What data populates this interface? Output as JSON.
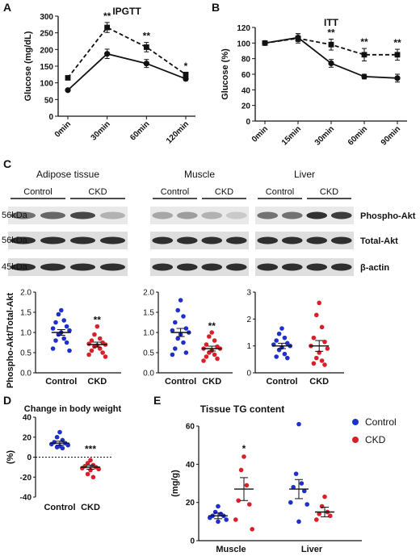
{
  "chart_data": [
    {
      "panel": "A",
      "type": "line",
      "title": "IPGTT",
      "ylabel": "Glucose (mg/dL)",
      "categories": [
        "0min",
        "30min",
        "60min",
        "120min"
      ],
      "ylim": [
        0,
        300
      ],
      "yticks": [
        0,
        50,
        100,
        150,
        200,
        250,
        300
      ],
      "series": [
        {
          "values": [
            78,
            187,
            158,
            112
          ],
          "errors": [
            3,
            14,
            12,
            5
          ],
          "style": "solid",
          "marker": "circle"
        },
        {
          "values": [
            115,
            266,
            207,
            125
          ],
          "errors": [
            6,
            15,
            14,
            6
          ],
          "style": "dashed",
          "marker": "square"
        }
      ],
      "annotations": [
        "",
        "**",
        "**",
        "*"
      ]
    },
    {
      "panel": "B",
      "type": "line",
      "title": "ITT",
      "ylabel": "Glucose (%)",
      "categories": [
        "0min",
        "15min",
        "30min",
        "60min",
        "90min"
      ],
      "ylim": [
        0,
        120
      ],
      "yticks": [
        0,
        20,
        40,
        60,
        80,
        100,
        120
      ],
      "series": [
        {
          "values": [
            100,
            107,
            74,
            57,
            55
          ],
          "errors": [
            1,
            5,
            5,
            3,
            5
          ],
          "style": "solid",
          "marker": "circle"
        },
        {
          "values": [
            100,
            106,
            98,
            85,
            85
          ],
          "errors": [
            1,
            6,
            7,
            8,
            7
          ],
          "style": "dashed",
          "marker": "square"
        }
      ],
      "annotations": [
        "",
        "",
        "**",
        "**",
        "**"
      ]
    },
    {
      "panel": "C",
      "type": "scatter",
      "ylabel": "Phospho-Akt/Total-Akt",
      "groups": [
        {
          "tissue": "Adipose tissue",
          "ylim": [
            0,
            2.0
          ],
          "yticks": [
            "0.0",
            "0.5",
            "1.0",
            "1.5",
            "2.0"
          ],
          "annotation": "**",
          "control": [
            1.55,
            1.45,
            1.3,
            1.25,
            1.15,
            1.1,
            1.05,
            1.0,
            0.95,
            0.85,
            0.8,
            0.75,
            0.6,
            0.55
          ],
          "ckd": [
            1.15,
            0.95,
            0.85,
            0.8,
            0.75,
            0.72,
            0.7,
            0.68,
            0.65,
            0.6,
            0.55,
            0.5,
            0.45,
            0.4
          ],
          "control_mean": 1.0,
          "control_sem": 0.07,
          "ckd_mean": 0.7,
          "ckd_sem": 0.06
        },
        {
          "tissue": "Muscle",
          "ylim": [
            0,
            2.0
          ],
          "yticks": [
            "0.0",
            "0.5",
            "1.0",
            "1.5",
            "2.0"
          ],
          "annotation": "**",
          "control": [
            1.8,
            1.55,
            1.4,
            1.25,
            1.1,
            1.05,
            1.0,
            0.95,
            0.85,
            0.75,
            0.6,
            0.5,
            0.45
          ],
          "ckd": [
            1.0,
            0.9,
            0.8,
            0.7,
            0.65,
            0.6,
            0.6,
            0.55,
            0.5,
            0.45,
            0.4,
            0.35,
            0.3
          ],
          "control_mean": 1.0,
          "control_sem": 0.1,
          "ckd_mean": 0.6,
          "ckd_sem": 0.06
        },
        {
          "tissue": "Liver",
          "ylim": [
            0,
            3
          ],
          "yticks": [
            "0",
            "1",
            "2",
            "3"
          ],
          "annotation": "",
          "control": [
            1.65,
            1.45,
            1.3,
            1.2,
            1.1,
            1.05,
            1.0,
            0.95,
            0.85,
            0.7,
            0.6,
            0.55
          ],
          "ckd": [
            2.6,
            2.15,
            1.7,
            1.3,
            1.15,
            1.0,
            0.9,
            0.75,
            0.55,
            0.45,
            0.35,
            0.3
          ],
          "control_mean": 1.0,
          "control_sem": 0.1,
          "ckd_mean": 1.0,
          "ckd_sem": 0.2
        }
      ],
      "categories": [
        "Control",
        "CKD"
      ]
    },
    {
      "panel": "D",
      "type": "scatter",
      "title": "Change in body weight",
      "ylabel": "(%)",
      "categories": [
        "Control",
        "CKD"
      ],
      "ylim": [
        -40,
        40
      ],
      "yticks": [
        -40,
        -20,
        0,
        20,
        40
      ],
      "control": [
        25,
        20,
        17,
        15,
        14,
        13,
        12,
        11,
        10,
        9
      ],
      "ckd": [
        -3,
        -6,
        -8,
        -9,
        -10,
        -11,
        -12,
        -13,
        -17,
        -20
      ],
      "control_mean": 14,
      "control_sem": 2,
      "ckd_mean": -10,
      "ckd_sem": 2,
      "annotation": "***"
    },
    {
      "panel": "E",
      "type": "scatter",
      "title": "Tissue TG content",
      "ylabel": "(mg/g)",
      "categories": [
        "Muscle",
        "Liver"
      ],
      "ylim": [
        0,
        60
      ],
      "yticks": [
        0,
        20,
        40,
        60
      ],
      "legend": [
        {
          "name": "Control",
          "color": "#1f2fc9"
        },
        {
          "name": "CKD",
          "color": "#d9202a"
        }
      ],
      "groups": [
        {
          "tissue": "Muscle",
          "annotation": "*",
          "control": [
            18,
            15,
            14,
            13,
            13,
            12,
            11,
            10
          ],
          "ckd": [
            44,
            37,
            29,
            21,
            19,
            11,
            6
          ],
          "control_mean": 13,
          "control_sem": 1.5,
          "ckd_mean": 27,
          "ckd_sem": 6
        },
        {
          "tissue": "Liver",
          "annotation": "",
          "control": [
            61,
            35,
            30,
            28,
            26,
            20,
            19,
            10
          ],
          "ckd": [
            23,
            18,
            15,
            14,
            13,
            11
          ],
          "control_mean": 27,
          "control_sem": 5,
          "ckd_mean": 15,
          "ckd_sem": 2.5
        }
      ]
    }
  ],
  "panel_labels": [
    "A",
    "B",
    "C",
    "D",
    "E"
  ],
  "blots": {
    "tissues": [
      "Adipose tissue",
      "Muscle",
      "Liver"
    ],
    "groups": [
      "Control",
      "CKD"
    ],
    "size_labels": [
      "56kDa",
      "56kDa",
      "45kDa"
    ],
    "proteins": [
      "Phospho-Akt",
      "Total-Akt",
      "β-actin"
    ]
  },
  "colors": {
    "control": "#1f2fc9",
    "ckd": "#d9202a",
    "line": "#111111"
  }
}
